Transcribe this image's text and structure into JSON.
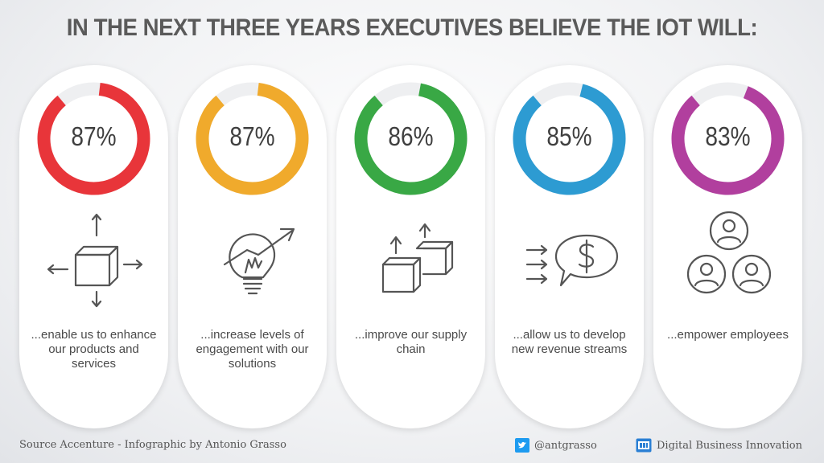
{
  "title": "IN THE NEXT THREE YEARS EXECUTIVES BELIEVE THE IOT WILL:",
  "chart_data": {
    "type": "donut",
    "title": "IN THE NEXT THREE YEARS EXECUTIVES BELIEVE THE IOT WILL:",
    "categories": [
      "...enable us to enhance our products and services",
      "...increase levels of engagement with our solutions",
      "...improve our supply chain",
      "...allow us to develop new revenue streams",
      "...empower employees"
    ],
    "values": [
      87,
      87,
      86,
      85,
      83
    ],
    "unit": "%"
  },
  "cards": [
    {
      "value": 87,
      "label": "87%",
      "color": "#e8353a",
      "icon": "box-arrows-icon",
      "text": "...enable us to enhance our products and services"
    },
    {
      "value": 87,
      "label": "87%",
      "color": "#f0aa2c",
      "icon": "lightbulb-arrow-icon",
      "text": "...increase levels of engagement with our solutions"
    },
    {
      "value": 86,
      "label": "86%",
      "color": "#39a845",
      "icon": "boxes-up-arrows-icon",
      "text": "...improve our supply chain"
    },
    {
      "value": 85,
      "label": "85%",
      "color": "#2d9bd2",
      "icon": "dollar-speech-icon",
      "text": "...allow us to develop new revenue streams"
    },
    {
      "value": 83,
      "label": "83%",
      "color": "#b13f9e",
      "icon": "people-group-icon",
      "text": "...empower employees"
    }
  ],
  "track_color": "#eeeff1",
  "footer": {
    "source": "Source Accenture - Infographic by Antonio Grasso",
    "twitter": "@antgrasso",
    "brand": "Digital Business Innovation",
    "twitter_color": "#1d9bf0",
    "brand_color": "#2a7fd4"
  }
}
